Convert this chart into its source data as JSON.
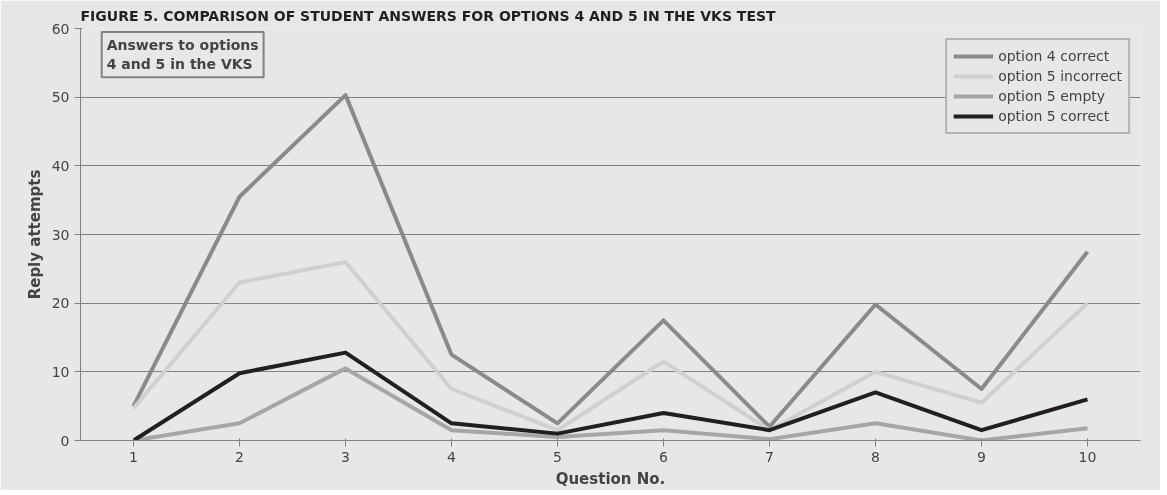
{
  "chart_data": {
    "type": "line",
    "title": "FIGURE 5. COMPARISON OF STUDENT ANSWERS FOR OPTIONS 4 AND 5 IN THE VKS TEST",
    "xlabel": "Question No.",
    "ylabel": "Reply attempts",
    "annotations": [
      "Answers to options\n4 and 5 in the VKS"
    ],
    "categories": [
      "1",
      "2",
      "3",
      "4",
      "5",
      "6",
      "7",
      "8",
      "9",
      "10"
    ],
    "series": [
      {
        "name": "option 4 correct",
        "color": "#8a8a8c",
        "values": [
          5,
          35.5,
          50.3,
          12.5,
          2.5,
          17.5,
          2,
          19.8,
          7.5,
          27.5
        ]
      },
      {
        "name": "option 5 incorrect",
        "color": "#cfd0d2",
        "values": [
          4.7,
          23,
          26,
          7.5,
          1.5,
          11.5,
          1.5,
          10,
          5.5,
          20
        ]
      },
      {
        "name": "option 5 empty",
        "color": "#a5a6a8",
        "values": [
          0,
          2.5,
          10.5,
          1.5,
          0.5,
          1.5,
          0.2,
          2.5,
          0,
          1.8
        ]
      },
      {
        "name": "option 5 correct",
        "color": "#231f20",
        "values": [
          0,
          9.8,
          12.8,
          2.5,
          1,
          4,
          1.5,
          7,
          1.5,
          6
        ]
      }
    ],
    "ylim": [
      0,
      60
    ],
    "yticks": [
      0,
      10,
      20,
      30,
      40,
      50,
      60
    ],
    "grid": "y",
    "legend": "top right",
    "marker": "none",
    "line_style": "solid"
  }
}
